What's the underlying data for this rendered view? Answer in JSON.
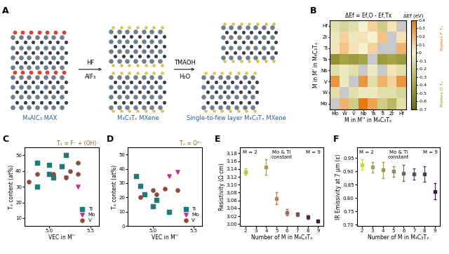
{
  "diagram": {
    "label": "A",
    "nodes": [
      {
        "label": "M₄AlC₃ MAX"
      },
      {
        "label": "M₄C₃Tₓ MXene"
      },
      {
        "label": "Single-to-few layer M₄C₃Tₓ MXene"
      }
    ],
    "arrows": [
      {
        "above": "HF",
        "below": "AlF₃"
      },
      {
        "above": "TMAOH",
        "below": "H₂O"
      }
    ]
  },
  "chart_data": [
    {
      "type": "heatmap",
      "label": "B",
      "title": "ΔEf = Ef,O - Ef,Tx",
      "x_label": "M in M'' in M₄C₃Tₓ",
      "y_label": "M in M' in M₄C₃Tₓ",
      "x": [
        "Mo",
        "W",
        "V",
        "Nb",
        "Ta",
        "Ti",
        "Zr",
        "Hf"
      ],
      "y": [
        "Hf",
        "Zr",
        "Ti",
        "Ta",
        "Nb",
        "V",
        "W",
        "Mo"
      ],
      "cells": [
        [
          -0.1,
          -0.15,
          -0.1,
          0.0,
          0.1,
          -0.2,
          0.05,
          null
        ],
        [
          -0.05,
          0.1,
          -0.05,
          0.05,
          0.0,
          0.15,
          null,
          0.05
        ],
        [
          0.05,
          0.15,
          0.05,
          0.0,
          0.1,
          null,
          null,
          0.2
        ],
        [
          -0.5,
          -0.4,
          -0.45,
          -0.4,
          null,
          -0.45,
          -0.4,
          -0.45
        ],
        [
          -0.1,
          -0.05,
          -0.1,
          null,
          -0.05,
          null,
          0.05,
          -0.1
        ],
        [
          0.3,
          -0.05,
          null,
          0.3,
          -0.1,
          0.2,
          0.1,
          0.3
        ],
        [
          -0.1,
          null,
          -0.1,
          -0.05,
          -0.05,
          -0.1,
          -0.1,
          -0.15
        ],
        [
          null,
          0.2,
          -0.2,
          0.4,
          0.25,
          -0.2,
          -0.3,
          -0.1
        ]
      ],
      "colorbar": {
        "label": "ΔEf (eV)",
        "range": [
          -0.7,
          0.4
        ],
        "ticks": [
          -0.7,
          -0.6,
          -0.5,
          -0.4,
          -0.3,
          -0.2,
          -0.1,
          0,
          0.1,
          0.2,
          0.3,
          0.4
        ],
        "top_note": "Prefers F Tₓ",
        "bottom_note": "Prefers O Tₓ"
      }
    },
    {
      "type": "scatter",
      "label": "C",
      "title": "Tₓ = F⁻ + (OH)⁻",
      "x_label": "VEC in M''",
      "y_label": "Tₓ content (at%)",
      "xlim": [
        4.7,
        5.6
      ],
      "xticks": [
        5.0,
        5.5
      ],
      "ylim": [
        5,
        55
      ],
      "yticks": [
        10,
        20,
        30,
        40,
        50
      ],
      "legend": "lower right",
      "series": [
        {
          "name": "Ti",
          "color": "#1f7a7a",
          "marker": "square",
          "x": [
            4.85,
            4.85,
            5.0,
            5.0,
            5.05,
            5.15,
            5.2
          ],
          "values": [
            30,
            45,
            38,
            44,
            36,
            43,
            50
          ]
        },
        {
          "name": "Mo",
          "color": "#c2308a",
          "marker": "triangle_down",
          "x": [
            5.2,
            5.35
          ],
          "values": [
            36,
            30
          ]
        },
        {
          "name": "V",
          "color": "#8b4a3a",
          "marker": "circle",
          "x": [
            4.75,
            4.85,
            5.05,
            5.2,
            5.25,
            5.35,
            5.35
          ],
          "values": [
            33,
            38,
            38,
            36,
            40,
            45,
            38
          ]
        }
      ]
    },
    {
      "type": "scatter",
      "label": "D",
      "title": "Tₓ = O²⁻",
      "x_label": "VEC in M''",
      "y_label": "Tₓ content (at%)",
      "xlim": [
        4.7,
        5.6
      ],
      "xticks": [
        5.0,
        5.5
      ],
      "ylim": [
        0,
        55
      ],
      "yticks": [
        0,
        10,
        20,
        30,
        40,
        50
      ],
      "legend": "lower right",
      "series": [
        {
          "name": "Ti",
          "color": "#1f7a7a",
          "marker": "square",
          "x": [
            4.8,
            4.85,
            4.9,
            5.0,
            5.05,
            5.2
          ],
          "values": [
            35,
            28,
            22,
            14,
            18,
            10
          ]
        },
        {
          "name": "Mo",
          "color": "#c2308a",
          "marker": "triangle_down",
          "x": [
            5.2,
            5.3
          ],
          "values": [
            35,
            38
          ]
        },
        {
          "name": "V",
          "color": "#8b4a3a",
          "marker": "circle",
          "x": [
            4.85,
            5.0,
            5.05,
            5.15,
            5.3
          ],
          "values": [
            20,
            25,
            22,
            26,
            25
          ]
        }
      ]
    },
    {
      "type": "scatter",
      "label": "E",
      "x_label": "Number of M in M₄C₃Tₓ",
      "y_label": "Resistivity (Ω·cm)",
      "annotations": [
        "M = 2",
        "Mo & Ti\nconstant",
        "M = 9"
      ],
      "xlim": [
        1.5,
        9.5
      ],
      "xticks": [
        2,
        3,
        4,
        5,
        6,
        7,
        8,
        9
      ],
      "ylim": [
        2.995,
        3.195
      ],
      "yticks": [
        {
          "value": 3.0,
          "label": "3.00"
        },
        3.02,
        3.04,
        3.06,
        3.08,
        {
          "value": 3.1,
          "label": "3.10"
        },
        3.12,
        3.14,
        3.16,
        3.18
      ],
      "marker": "square",
      "x": [
        2,
        4,
        5,
        6,
        7,
        8,
        9
      ],
      "values": [
        3.133,
        3.145,
        3.065,
        3.03,
        3.025,
        3.018,
        3.008
      ],
      "errors": [
        0.008,
        0.02,
        0.015,
        0.008,
        0.005,
        0.004,
        0.004
      ],
      "colors": [
        "#b5c93a",
        "#a8a040",
        "#b08060",
        "#9a6a5a",
        "#7a4a55",
        "#4a2a4a",
        "#3a1a4a"
      ]
    },
    {
      "type": "scatter",
      "label": "F",
      "x_label": "Number of M in M₄C₃Tₓ",
      "y_label": "IR Emissivity at 7 μm (ε)",
      "annotations": [
        "M = 2",
        "Mo & Ti\nconstant",
        "M = 9"
      ],
      "xlim": [
        1.5,
        9.5
      ],
      "xticks": [
        2,
        3,
        4,
        5,
        6,
        7,
        8,
        9
      ],
      "ylim": [
        0.695,
        0.99
      ],
      "yticks": [
        {
          "value": 0.7,
          "label": "0.70"
        },
        0.75,
        {
          "value": 0.8,
          "label": "0.80"
        },
        0.85,
        {
          "value": 0.9,
          "label": "0.90"
        },
        0.95
      ],
      "marker": "square",
      "x": [
        2,
        3,
        4,
        5,
        6,
        7,
        8,
        9
      ],
      "values": [
        0.925,
        0.915,
        0.905,
        0.9,
        0.893,
        0.89,
        0.89,
        0.825
      ],
      "errors": [
        0.02,
        0.02,
        0.03,
        0.02,
        0.03,
        0.02,
        0.03,
        0.03
      ],
      "colors": [
        "#c5d640",
        "#a8a83a",
        "#9a9a4a",
        "#8a8a5a",
        "#6a6a5a",
        "#5a4a5a",
        "#4a3a5a",
        "#3a1a4a"
      ]
    }
  ]
}
